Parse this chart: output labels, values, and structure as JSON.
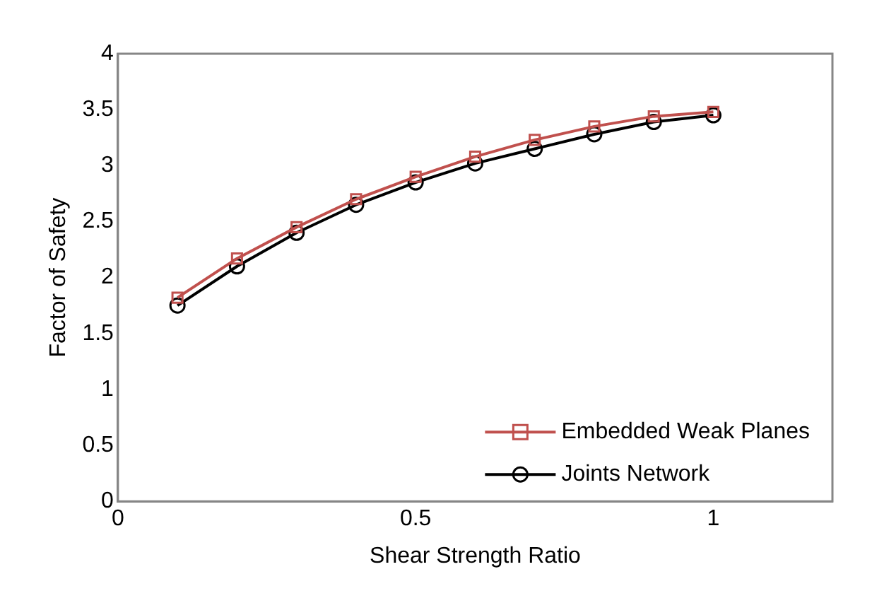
{
  "chart_data": {
    "type": "line",
    "xlabel": "Shear Strength Ratio",
    "ylabel": "Factor of Safety",
    "x": [
      0.1,
      0.2,
      0.3,
      0.4,
      0.5,
      0.6,
      0.7,
      0.8,
      0.9,
      1.0
    ],
    "series": [
      {
        "name": "Embedded Weak Planes",
        "color": "#c0504d",
        "marker": "square",
        "values": [
          1.82,
          2.17,
          2.45,
          2.7,
          2.9,
          3.08,
          3.23,
          3.35,
          3.44,
          3.48
        ]
      },
      {
        "name": "Joints Network",
        "color": "#000000",
        "marker": "circle",
        "values": [
          1.75,
          2.1,
          2.4,
          2.65,
          2.85,
          3.02,
          3.15,
          3.28,
          3.39,
          3.45
        ]
      }
    ],
    "xlim": [
      0,
      1.2
    ],
    "xticks": [
      0,
      0.5,
      1
    ],
    "ylim": [
      0,
      4
    ],
    "yticks": [
      0,
      0.5,
      1,
      1.5,
      2,
      2.5,
      3,
      3.5,
      4
    ],
    "grid": false,
    "legend": "bottom right"
  }
}
